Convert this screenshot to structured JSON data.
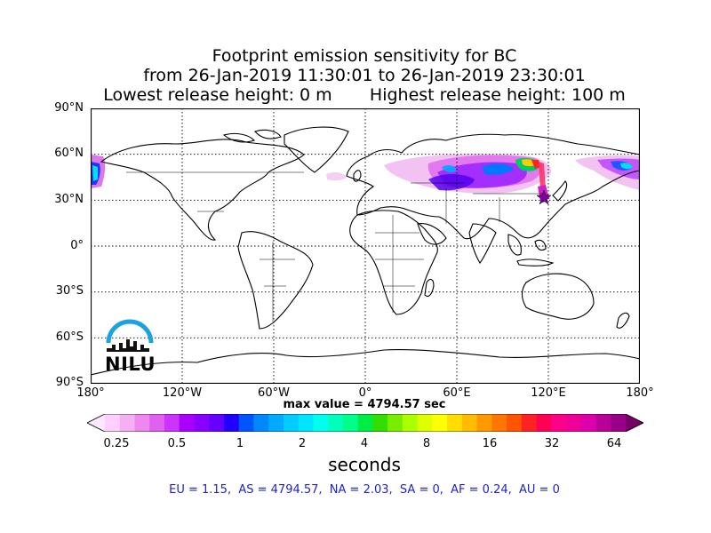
{
  "title": {
    "line1": "Footprint emission sensitivity for BC",
    "line2": "from 26-Jan-2019 11:30:01 to 26-Jan-2019 23:30:01",
    "line3": "Lowest release height: 0 m       Highest release height: 100 m"
  },
  "map": {
    "lat_labels": [
      "90°N",
      "60°N",
      "30°N",
      "0°",
      "30°S",
      "60°S",
      "90°S"
    ],
    "lon_labels": [
      "180°",
      "120°W",
      "60°W",
      "0°",
      "60°E",
      "120°E",
      "180°"
    ],
    "grid": "dotted"
  },
  "max_value": "max value = 4794.57 sec",
  "colorbar": {
    "tick_labels": [
      "0.25",
      "0.5",
      "1",
      "2",
      "4",
      "8",
      "16",
      "32",
      "64"
    ],
    "units": "seconds",
    "colors": [
      "#ffe8ff",
      "#ffd0ff",
      "#f5b0f5",
      "#ee88ee",
      "#e060f0",
      "#cc33ff",
      "#aa00ff",
      "#8800ff",
      "#6600ff",
      "#2200ff",
      "#0055ff",
      "#0088ff",
      "#00aaff",
      "#00ccff",
      "#00e5ff",
      "#00ffee",
      "#00ffbb",
      "#00ff88",
      "#00ee44",
      "#33dd00",
      "#77ee00",
      "#aaff00",
      "#ddff00",
      "#ffff00",
      "#ffdd00",
      "#ffbb00",
      "#ff9900",
      "#ff7700",
      "#ff5500",
      "#ff2222",
      "#ff0055",
      "#ff0088",
      "#ee0099",
      "#dd00aa",
      "#bb0099",
      "#990088",
      "#770066"
    ]
  },
  "regions_line": "EU = 1.15,  AS = 4794.57,  NA = 2.03,  SA = 0,  AF = 0.24,  AU = 0",
  "logo": {
    "text": "NILU",
    "color": "#1aa3e0"
  }
}
